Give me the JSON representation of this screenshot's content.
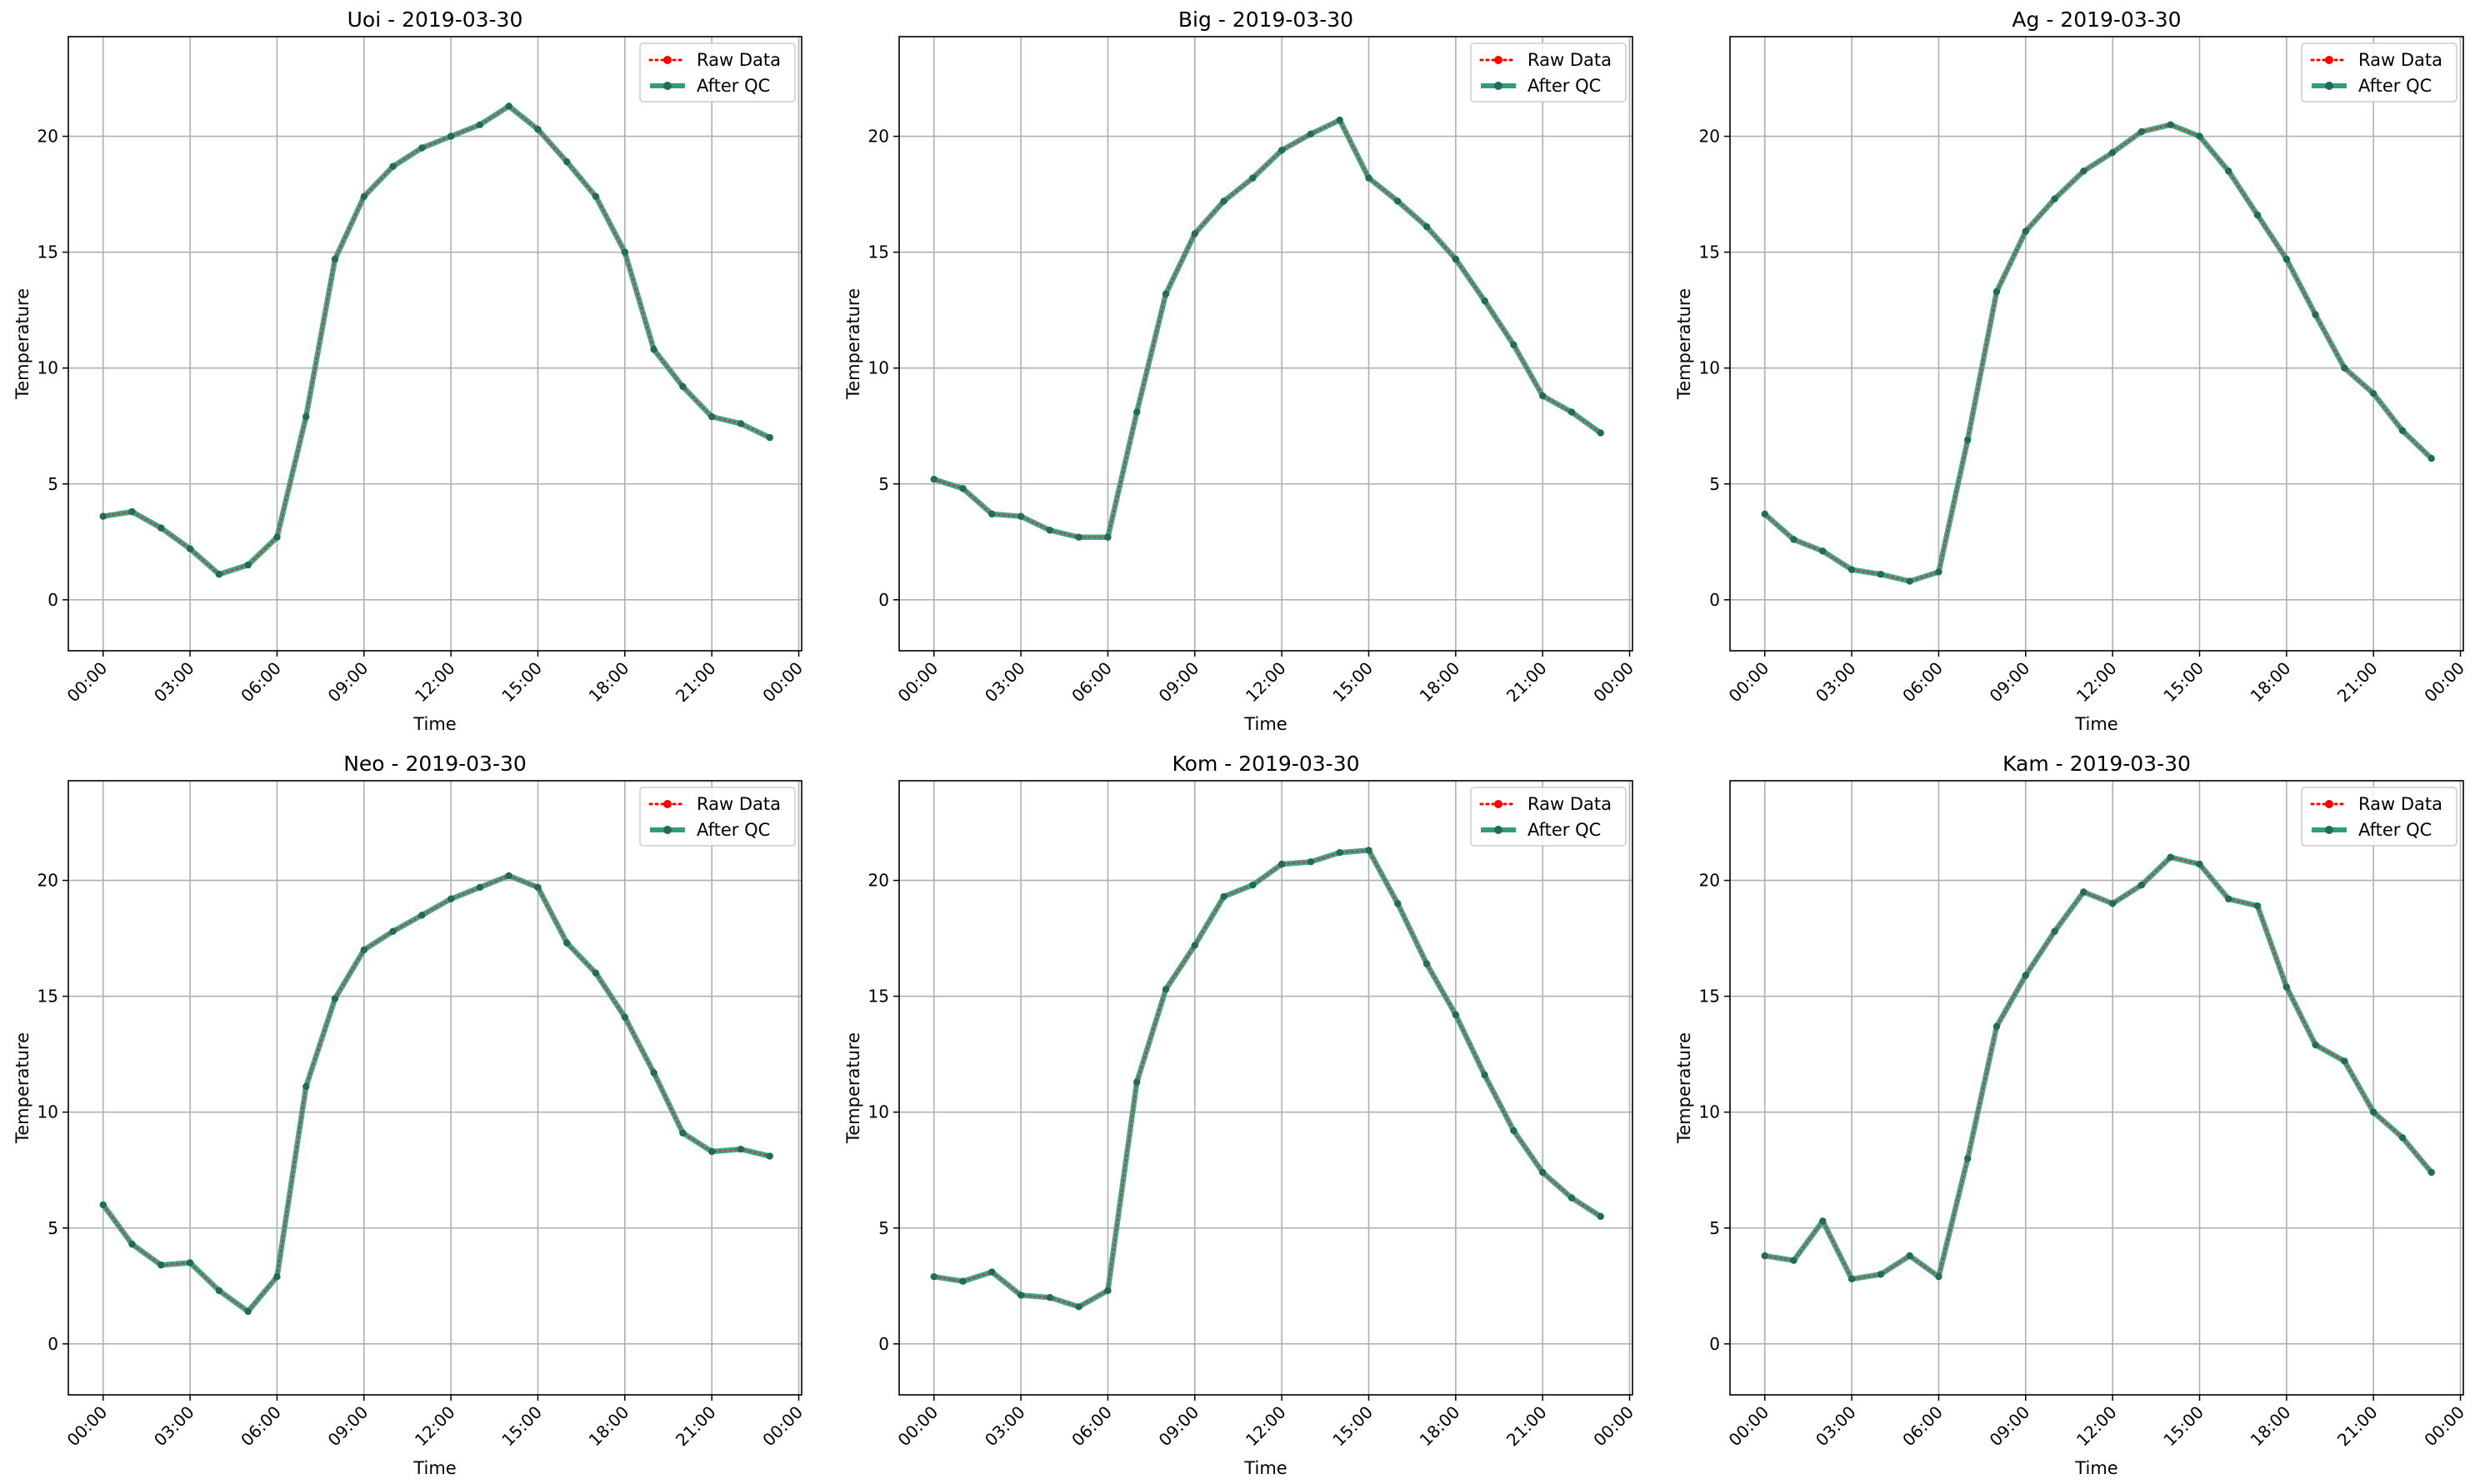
{
  "colors": {
    "raw": "#ff0000",
    "qc_line": "#2e9e7e",
    "qc_marker": "#226b56",
    "grid": "#b0b0b0",
    "axes": "#000000",
    "legend_border": "#cccccc"
  },
  "chart_data": [
    {
      "type": "line",
      "title": "Uoi - 2019-03-30",
      "xlabel": "Time",
      "ylabel": "Temperature",
      "x": [
        "00:00",
        "01:00",
        "02:00",
        "03:00",
        "04:00",
        "05:00",
        "06:00",
        "07:00",
        "08:00",
        "09:00",
        "10:00",
        "11:00",
        "12:00",
        "13:00",
        "14:00",
        "15:00",
        "16:00",
        "17:00",
        "18:00",
        "19:00",
        "20:00",
        "21:00",
        "22:00",
        "23:00"
      ],
      "xticks": [
        "00:00",
        "03:00",
        "06:00",
        "09:00",
        "12:00",
        "15:00",
        "18:00",
        "21:00",
        "00:00"
      ],
      "yticks": [
        0,
        5,
        10,
        15,
        20
      ],
      "ylim": [
        -2.2,
        24.3
      ],
      "xlim_hours": [
        -1.2,
        24.1
      ],
      "grid": true,
      "legend_position": "top-right",
      "series": [
        {
          "name": "Raw Data",
          "style": "dotted",
          "values": [
            3.6,
            3.8,
            3.1,
            2.2,
            1.1,
            1.5,
            2.7,
            7.9,
            14.7,
            17.4,
            18.7,
            19.5,
            20.0,
            20.5,
            21.3,
            20.3,
            18.9,
            17.4,
            15.0,
            10.8,
            9.2,
            7.9,
            7.6,
            7.0
          ]
        },
        {
          "name": "After QC",
          "style": "solid",
          "values": [
            3.6,
            3.8,
            3.1,
            2.2,
            1.1,
            1.5,
            2.7,
            7.9,
            14.7,
            17.4,
            18.7,
            19.5,
            20.0,
            20.5,
            21.3,
            20.3,
            18.9,
            17.4,
            15.0,
            10.8,
            9.2,
            7.9,
            7.6,
            7.0
          ]
        }
      ]
    },
    {
      "type": "line",
      "title": "Big - 2019-03-30",
      "xlabel": "Time",
      "ylabel": "Temperature",
      "x": [
        "00:00",
        "01:00",
        "02:00",
        "03:00",
        "04:00",
        "05:00",
        "06:00",
        "07:00",
        "08:00",
        "09:00",
        "10:00",
        "11:00",
        "12:00",
        "13:00",
        "14:00",
        "15:00",
        "16:00",
        "17:00",
        "18:00",
        "19:00",
        "20:00",
        "21:00",
        "22:00",
        "23:00"
      ],
      "xticks": [
        "00:00",
        "03:00",
        "06:00",
        "09:00",
        "12:00",
        "15:00",
        "18:00",
        "21:00",
        "00:00"
      ],
      "yticks": [
        0,
        5,
        10,
        15,
        20
      ],
      "ylim": [
        -2.2,
        24.3
      ],
      "xlim_hours": [
        -1.2,
        24.1
      ],
      "grid": true,
      "legend_position": "top-right",
      "series": [
        {
          "name": "Raw Data",
          "style": "dotted",
          "values": [
            5.2,
            4.8,
            3.7,
            3.6,
            3.0,
            2.7,
            2.7,
            8.1,
            13.2,
            15.8,
            17.2,
            18.2,
            19.4,
            20.1,
            20.7,
            18.2,
            17.2,
            16.1,
            14.7,
            12.9,
            11.0,
            8.8,
            8.1,
            7.2
          ]
        },
        {
          "name": "After QC",
          "style": "solid",
          "values": [
            5.2,
            4.8,
            3.7,
            3.6,
            3.0,
            2.7,
            2.7,
            8.1,
            13.2,
            15.8,
            17.2,
            18.2,
            19.4,
            20.1,
            20.7,
            18.2,
            17.2,
            16.1,
            14.7,
            12.9,
            11.0,
            8.8,
            8.1,
            7.2
          ]
        }
      ]
    },
    {
      "type": "line",
      "title": "Ag - 2019-03-30",
      "xlabel": "Time",
      "ylabel": "Temperature",
      "x": [
        "00:00",
        "01:00",
        "02:00",
        "03:00",
        "04:00",
        "05:00",
        "06:00",
        "07:00",
        "08:00",
        "09:00",
        "10:00",
        "11:00",
        "12:00",
        "13:00",
        "14:00",
        "15:00",
        "16:00",
        "17:00",
        "18:00",
        "19:00",
        "20:00",
        "21:00",
        "22:00",
        "23:00"
      ],
      "xticks": [
        "00:00",
        "03:00",
        "06:00",
        "09:00",
        "12:00",
        "15:00",
        "18:00",
        "21:00",
        "00:00"
      ],
      "yticks": [
        0,
        5,
        10,
        15,
        20
      ],
      "ylim": [
        -2.2,
        24.3
      ],
      "xlim_hours": [
        -1.2,
        24.1
      ],
      "grid": true,
      "legend_position": "top-right",
      "series": [
        {
          "name": "Raw Data",
          "style": "dotted",
          "values": [
            3.7,
            2.6,
            2.1,
            1.3,
            1.1,
            0.8,
            1.2,
            6.9,
            13.3,
            15.9,
            17.3,
            18.5,
            19.3,
            20.2,
            20.5,
            20.0,
            18.5,
            16.6,
            14.7,
            12.3,
            10.0,
            8.9,
            7.3,
            6.1
          ]
        },
        {
          "name": "After QC",
          "style": "solid",
          "values": [
            3.7,
            2.6,
            2.1,
            1.3,
            1.1,
            0.8,
            1.2,
            6.9,
            13.3,
            15.9,
            17.3,
            18.5,
            19.3,
            20.2,
            20.5,
            20.0,
            18.5,
            16.6,
            14.7,
            12.3,
            10.0,
            8.9,
            7.3,
            6.1
          ]
        }
      ]
    },
    {
      "type": "line",
      "title": "Neo - 2019-03-30",
      "xlabel": "Time",
      "ylabel": "Temperature",
      "x": [
        "00:00",
        "01:00",
        "02:00",
        "03:00",
        "04:00",
        "05:00",
        "06:00",
        "07:00",
        "08:00",
        "09:00",
        "10:00",
        "11:00",
        "12:00",
        "13:00",
        "14:00",
        "15:00",
        "16:00",
        "17:00",
        "18:00",
        "19:00",
        "20:00",
        "21:00",
        "22:00",
        "23:00"
      ],
      "xticks": [
        "00:00",
        "03:00",
        "06:00",
        "09:00",
        "12:00",
        "15:00",
        "18:00",
        "21:00",
        "00:00"
      ],
      "yticks": [
        0,
        5,
        10,
        15,
        20
      ],
      "ylim": [
        -2.2,
        24.3
      ],
      "xlim_hours": [
        -1.2,
        24.1
      ],
      "grid": true,
      "legend_position": "top-right",
      "series": [
        {
          "name": "Raw Data",
          "style": "dotted",
          "values": [
            6.0,
            4.3,
            3.4,
            3.5,
            2.3,
            1.4,
            2.9,
            11.1,
            14.9,
            17.0,
            17.8,
            18.5,
            19.2,
            19.7,
            20.2,
            19.7,
            17.3,
            16.0,
            14.1,
            11.7,
            9.1,
            8.3,
            8.4,
            8.1
          ]
        },
        {
          "name": "After QC",
          "style": "solid",
          "values": [
            6.0,
            4.3,
            3.4,
            3.5,
            2.3,
            1.4,
            2.9,
            11.1,
            14.9,
            17.0,
            17.8,
            18.5,
            19.2,
            19.7,
            20.2,
            19.7,
            17.3,
            16.0,
            14.1,
            11.7,
            9.1,
            8.3,
            8.4,
            8.1
          ]
        }
      ]
    },
    {
      "type": "line",
      "title": "Kom - 2019-03-30",
      "xlabel": "Time",
      "ylabel": "Temperature",
      "x": [
        "00:00",
        "01:00",
        "02:00",
        "03:00",
        "04:00",
        "05:00",
        "06:00",
        "07:00",
        "08:00",
        "09:00",
        "10:00",
        "11:00",
        "12:00",
        "13:00",
        "14:00",
        "15:00",
        "16:00",
        "17:00",
        "18:00",
        "19:00",
        "20:00",
        "21:00",
        "22:00",
        "23:00"
      ],
      "xticks": [
        "00:00",
        "03:00",
        "06:00",
        "09:00",
        "12:00",
        "15:00",
        "18:00",
        "21:00",
        "00:00"
      ],
      "yticks": [
        0,
        5,
        10,
        15,
        20
      ],
      "ylim": [
        -2.2,
        24.3
      ],
      "xlim_hours": [
        -1.2,
        24.1
      ],
      "grid": true,
      "legend_position": "top-right",
      "series": [
        {
          "name": "Raw Data",
          "style": "dotted",
          "values": [
            2.9,
            2.7,
            3.1,
            2.1,
            2.0,
            1.6,
            2.3,
            11.3,
            15.3,
            17.2,
            19.3,
            19.8,
            20.7,
            20.8,
            21.2,
            21.3,
            19.0,
            16.4,
            14.2,
            11.6,
            9.2,
            7.4,
            6.3,
            5.5
          ]
        },
        {
          "name": "After QC",
          "style": "solid",
          "values": [
            2.9,
            2.7,
            3.1,
            2.1,
            2.0,
            1.6,
            2.3,
            11.3,
            15.3,
            17.2,
            19.3,
            19.8,
            20.7,
            20.8,
            21.2,
            21.3,
            19.0,
            16.4,
            14.2,
            11.6,
            9.2,
            7.4,
            6.3,
            5.5
          ]
        }
      ]
    },
    {
      "type": "line",
      "title": "Kam - 2019-03-30",
      "xlabel": "Time",
      "ylabel": "Temperature",
      "x": [
        "00:00",
        "01:00",
        "02:00",
        "03:00",
        "04:00",
        "05:00",
        "06:00",
        "07:00",
        "08:00",
        "09:00",
        "10:00",
        "11:00",
        "12:00",
        "13:00",
        "14:00",
        "15:00",
        "16:00",
        "17:00",
        "18:00",
        "19:00",
        "20:00",
        "21:00",
        "22:00",
        "23:00"
      ],
      "xticks": [
        "00:00",
        "03:00",
        "06:00",
        "09:00",
        "12:00",
        "15:00",
        "18:00",
        "21:00",
        "00:00"
      ],
      "yticks": [
        0,
        5,
        10,
        15,
        20
      ],
      "ylim": [
        -2.2,
        24.3
      ],
      "xlim_hours": [
        -1.2,
        24.1
      ],
      "grid": true,
      "legend_position": "top-right",
      "series": [
        {
          "name": "Raw Data",
          "style": "dotted",
          "values": [
            3.8,
            3.6,
            5.3,
            2.8,
            3.0,
            3.8,
            2.9,
            8.0,
            13.7,
            15.9,
            17.8,
            19.5,
            19.0,
            19.8,
            21.0,
            20.7,
            19.2,
            18.9,
            15.4,
            12.9,
            12.2,
            10.0,
            8.9,
            7.4
          ]
        },
        {
          "name": "After QC",
          "style": "solid",
          "values": [
            3.8,
            3.6,
            5.3,
            2.8,
            3.0,
            3.8,
            2.9,
            8.0,
            13.7,
            15.9,
            17.8,
            19.5,
            19.0,
            19.8,
            21.0,
            20.7,
            19.2,
            18.9,
            15.4,
            12.9,
            12.2,
            10.0,
            8.9,
            7.4
          ]
        }
      ]
    }
  ]
}
